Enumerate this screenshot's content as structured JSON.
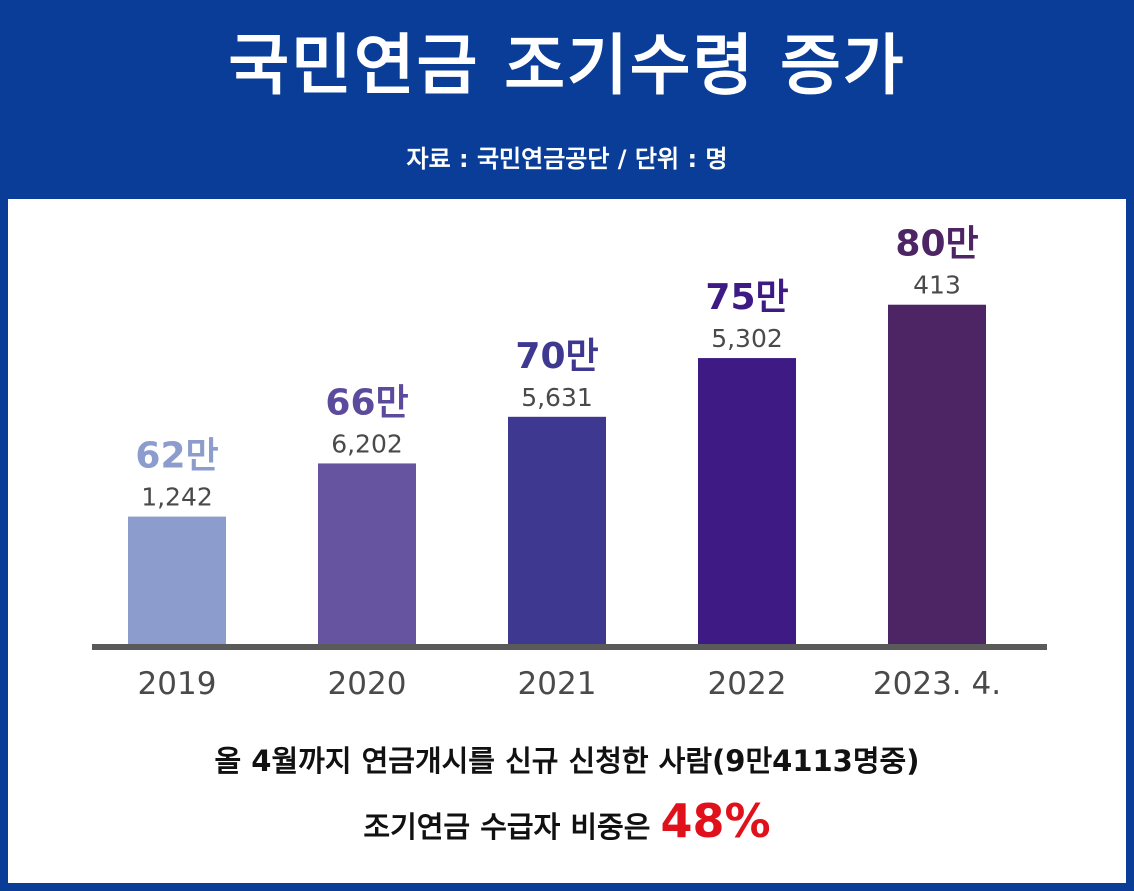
{
  "title": "국민연금 조기수령 증가",
  "subtitle": "자료 : 국민연금공단  /  단위 : 명",
  "chart_data": {
    "type": "bar",
    "categories": [
      "2019",
      "2020",
      "2021",
      "2022",
      "2023. 4."
    ],
    "values": [
      621242,
      666202,
      705631,
      755302,
      800413
    ],
    "value_labels_major": [
      "62만",
      "66만",
      "70만",
      "75만",
      "80만"
    ],
    "value_labels_minor": [
      "1,242",
      "6,202",
      "5,631",
      "5,302",
      "413"
    ],
    "colors": [
      "#8b9ccd",
      "#6654a0",
      "#3e3890",
      "#3e1a84",
      "#4d2464"
    ],
    "major_label_colors": [
      "#8b9ccd",
      "#5c4a9c",
      "#3e3890",
      "#3e1a84",
      "#4d2464"
    ],
    "grid": false,
    "title": "",
    "xlabel": "",
    "ylabel": ""
  },
  "footer": {
    "line1": "올 4월까지 연금개시를 신규 신청한 사람(9만4113명중)",
    "line2_prefix": "조기연금 수급자 비중은",
    "line2_highlight": "48%"
  }
}
